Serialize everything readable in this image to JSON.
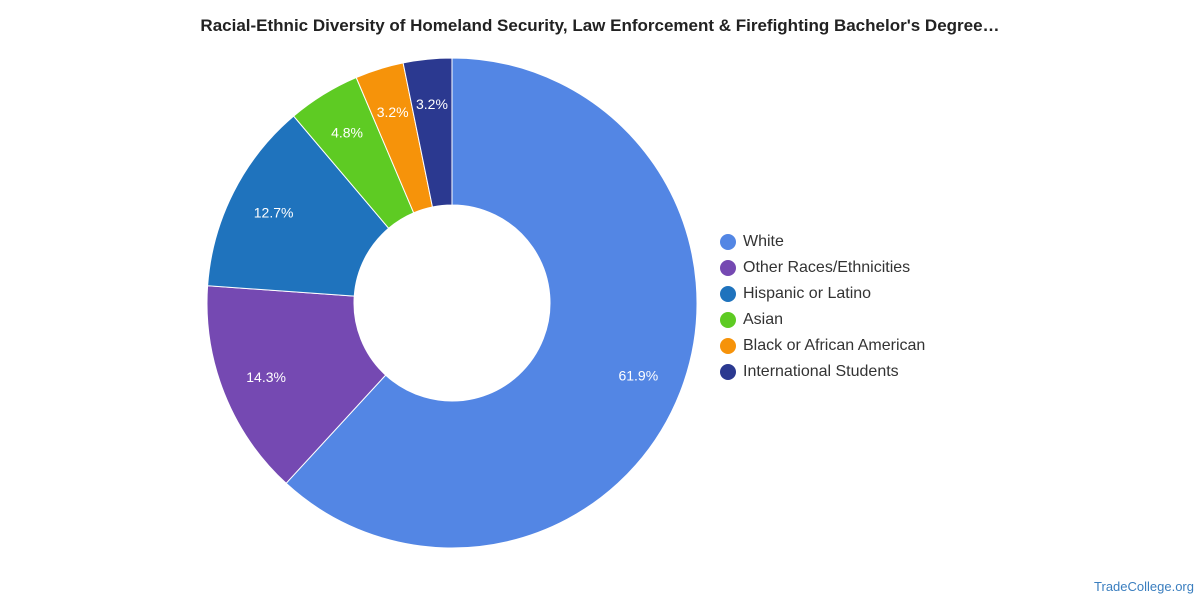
{
  "chart_data": {
    "type": "pie",
    "title": "Racial-Ethnic Diversity of Homeland Security, Law Enforcement & Firefighting Bachelor's Degree…",
    "legend_position": "right",
    "slices": [
      {
        "label": "White",
        "value": 61.9,
        "value_label": "61.9%",
        "color": "#5386e4"
      },
      {
        "label": "Other Races/Ethnicities",
        "value": 14.3,
        "value_label": "14.3%",
        "color": "#7549b2"
      },
      {
        "label": "Hispanic or Latino",
        "value": 12.7,
        "value_label": "12.7%",
        "color": "#1f73bd"
      },
      {
        "label": "Asian",
        "value": 4.8,
        "value_label": "4.8%",
        "color": "#5ecb23"
      },
      {
        "label": "Black or African American",
        "value": 3.2,
        "value_label": "3.2%",
        "color": "#f6930a"
      },
      {
        "label": "International Students",
        "value": 3.2,
        "value_label": "3.2%",
        "color": "#2b3990"
      }
    ]
  },
  "watermark": "TradeCollege.org"
}
